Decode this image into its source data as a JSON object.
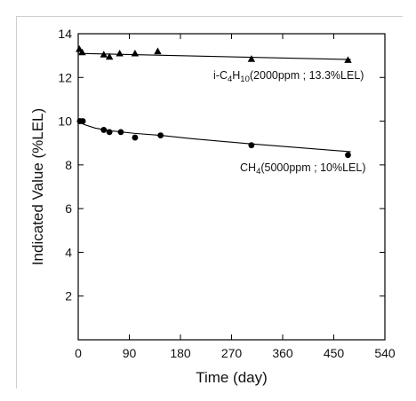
{
  "chart_data": {
    "type": "scatter",
    "xlabel": "Time (day)",
    "ylabel": "Indicated Value (%LEL)",
    "xlim": [
      0,
      540
    ],
    "ylim": [
      0,
      14
    ],
    "xticks": [
      0,
      90,
      180,
      270,
      360,
      450,
      540
    ],
    "yticks": [
      2,
      4,
      6,
      8,
      10,
      12,
      14
    ],
    "grid": false,
    "series": [
      {
        "name": "i-C4H10(2000ppm ; 13.3%LEL)",
        "label_parts": [
          "i-C",
          "4",
          "H",
          "10",
          "(2000ppm ; 13.3%LEL)"
        ],
        "marker": "triangle",
        "x": [
          2,
          7,
          45,
          55,
          73,
          100,
          140,
          305,
          475
        ],
        "y": [
          13.3,
          13.15,
          13.05,
          12.95,
          13.1,
          13.1,
          13.2,
          12.85,
          12.8
        ],
        "trend": {
          "x": [
            0,
            480
          ],
          "y": [
            13.1,
            12.82
          ]
        }
      },
      {
        "name": "CH4(5000ppm ; 10%LEL)",
        "label_parts": [
          "CH",
          "4",
          "(5000ppm ; 10%LEL)"
        ],
        "marker": "circle",
        "x": [
          3,
          8,
          45,
          55,
          75,
          100,
          145,
          305,
          475
        ],
        "y": [
          10.0,
          10.0,
          9.6,
          9.5,
          9.5,
          9.25,
          9.35,
          8.9,
          8.45
        ],
        "trend": {
          "x": [
            0,
            10,
            30,
            60,
            100,
            145,
            200,
            300,
            480
          ],
          "y": [
            10.0,
            9.85,
            9.68,
            9.55,
            9.44,
            9.35,
            9.2,
            8.97,
            8.6
          ]
        }
      }
    ]
  }
}
